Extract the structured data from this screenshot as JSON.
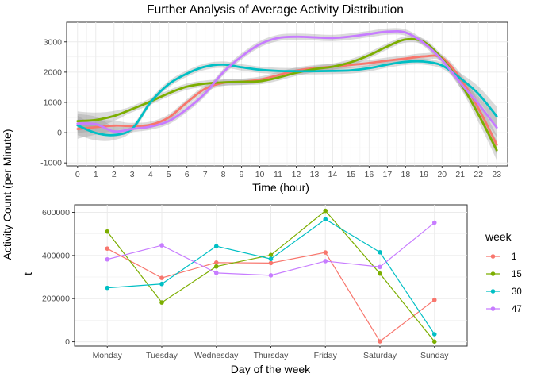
{
  "figure": {
    "shared_ylabel": "Activity Count (per Minute)"
  },
  "chart_data": [
    {
      "type": "line",
      "title": "Further Analysis of Average Activity Distribution",
      "xlabel": "Time (hour)",
      "ylabel": "",
      "x_ticks": [
        0,
        1,
        2,
        3,
        4,
        5,
        6,
        7,
        8,
        9,
        10,
        11,
        12,
        13,
        14,
        15,
        16,
        17,
        18,
        19,
        20,
        21,
        22,
        23
      ],
      "y_ticks": [
        -1000,
        0,
        1000,
        2000,
        3000
      ],
      "xlim": [
        -0.6,
        23.6
      ],
      "ylim": [
        -1100,
        3650
      ],
      "smooth": true,
      "confidence_band": true,
      "grid": true,
      "series": [
        {
          "key": "1",
          "color": "#F8766D",
          "points": [
            [
              0,
              120
            ],
            [
              1,
              180
            ],
            [
              2,
              230
            ],
            [
              3,
              220
            ],
            [
              4,
              260
            ],
            [
              5,
              500
            ],
            [
              6,
              1000
            ],
            [
              7,
              1450
            ],
            [
              8,
              1650
            ],
            [
              9,
              1680
            ],
            [
              10,
              1750
            ],
            [
              11,
              1900
            ],
            [
              12,
              2050
            ],
            [
              13,
              2130
            ],
            [
              14,
              2180
            ],
            [
              15,
              2240
            ],
            [
              16,
              2300
            ],
            [
              17,
              2380
            ],
            [
              18,
              2450
            ],
            [
              19,
              2520
            ],
            [
              20,
              2480
            ],
            [
              21,
              1800
            ],
            [
              22,
              800
            ],
            [
              23,
              -400
            ]
          ]
        },
        {
          "key": "15",
          "color": "#7CAE00",
          "points": [
            [
              0,
              380
            ],
            [
              1,
              420
            ],
            [
              2,
              550
            ],
            [
              3,
              780
            ],
            [
              4,
              1030
            ],
            [
              5,
              1300
            ],
            [
              6,
              1520
            ],
            [
              7,
              1620
            ],
            [
              8,
              1660
            ],
            [
              9,
              1680
            ],
            [
              10,
              1700
            ],
            [
              11,
              1820
            ],
            [
              12,
              1980
            ],
            [
              13,
              2100
            ],
            [
              14,
              2180
            ],
            [
              15,
              2330
            ],
            [
              16,
              2560
            ],
            [
              17,
              2850
            ],
            [
              18,
              3080
            ],
            [
              19,
              3000
            ],
            [
              20,
              2450
            ],
            [
              21,
              1650
            ],
            [
              22,
              600
            ],
            [
              23,
              -580
            ]
          ]
        },
        {
          "key": "30",
          "color": "#00BFC4",
          "points": [
            [
              0,
              240
            ],
            [
              1,
              -10
            ],
            [
              2,
              -80
            ],
            [
              3,
              130
            ],
            [
              4,
              1000
            ],
            [
              5,
              1600
            ],
            [
              6,
              1950
            ],
            [
              7,
              2180
            ],
            [
              8,
              2250
            ],
            [
              9,
              2160
            ],
            [
              10,
              2080
            ],
            [
              11,
              2040
            ],
            [
              12,
              2030
            ],
            [
              13,
              2030
            ],
            [
              14,
              2040
            ],
            [
              15,
              2060
            ],
            [
              16,
              2130
            ],
            [
              17,
              2250
            ],
            [
              18,
              2340
            ],
            [
              19,
              2350
            ],
            [
              20,
              2220
            ],
            [
              21,
              1800
            ],
            [
              22,
              1280
            ],
            [
              23,
              540
            ]
          ]
        },
        {
          "key": "47",
          "color": "#C77CFF",
          "points": [
            [
              0,
              300
            ],
            [
              1,
              280
            ],
            [
              2,
              40
            ],
            [
              3,
              120
            ],
            [
              4,
              200
            ],
            [
              5,
              380
            ],
            [
              6,
              780
            ],
            [
              7,
              1300
            ],
            [
              8,
              2000
            ],
            [
              9,
              2520
            ],
            [
              10,
              2920
            ],
            [
              11,
              3130
            ],
            [
              12,
              3170
            ],
            [
              13,
              3150
            ],
            [
              14,
              3130
            ],
            [
              15,
              3180
            ],
            [
              16,
              3260
            ],
            [
              17,
              3340
            ],
            [
              18,
              3310
            ],
            [
              19,
              2960
            ],
            [
              20,
              2400
            ],
            [
              21,
              1650
            ],
            [
              22,
              950
            ],
            [
              23,
              170
            ]
          ]
        }
      ]
    },
    {
      "type": "line",
      "xlabel": "Day of the week",
      "ylabel": "t",
      "categories": [
        "Monday",
        "Tuesday",
        "Wednesday",
        "Thursday",
        "Friday",
        "Saturday",
        "Sunday"
      ],
      "y_ticks": [
        0,
        200000,
        400000,
        600000
      ],
      "ylim": [
        -20000,
        635000
      ],
      "grid": true,
      "legend": {
        "title": "week",
        "position": "right"
      },
      "series": [
        {
          "name": "1",
          "color": "#F8766D",
          "values": [
            432000,
            296000,
            367000,
            365000,
            414000,
            2000,
            194000
          ]
        },
        {
          "name": "15",
          "color": "#7CAE00",
          "values": [
            511000,
            182000,
            349000,
            402000,
            607000,
            316000,
            1000
          ]
        },
        {
          "name": "30",
          "color": "#00BFC4",
          "values": [
            250000,
            268000,
            443000,
            384000,
            568000,
            415000,
            35000
          ]
        },
        {
          "name": "47",
          "color": "#C77CFF",
          "values": [
            382000,
            447000,
            319000,
            308000,
            374000,
            347000,
            552000
          ]
        }
      ]
    }
  ]
}
